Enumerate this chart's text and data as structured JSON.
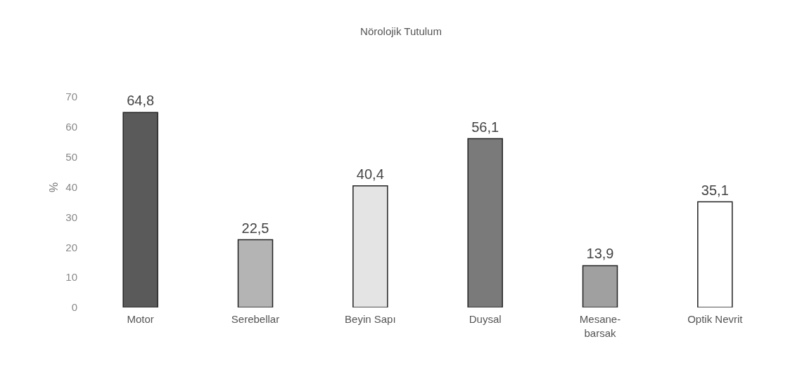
{
  "chart_data": {
    "type": "bar",
    "title": "Nörolojik Tutulum",
    "ylabel": "%",
    "categories": [
      "Motor",
      "Serebellar",
      "Beyin Sapı",
      "Duysal",
      "Mesane-barsak",
      "Optik Nevrit"
    ],
    "values": [
      64.8,
      22.5,
      40.4,
      56.1,
      13.9,
      35.1
    ],
    "value_labels": [
      "64,8",
      "22,5",
      "40,4",
      "56,1",
      "13,9",
      "35,1"
    ],
    "colors": [
      "#5a5a5a",
      "#b4b4b4",
      "#e4e4e4",
      "#7a7a7a",
      "#a0a0a0",
      "#ffffff"
    ],
    "ylim": [
      0,
      70
    ],
    "yticks": [
      0,
      10,
      20,
      30,
      40,
      50,
      60,
      70
    ],
    "grid": false
  }
}
